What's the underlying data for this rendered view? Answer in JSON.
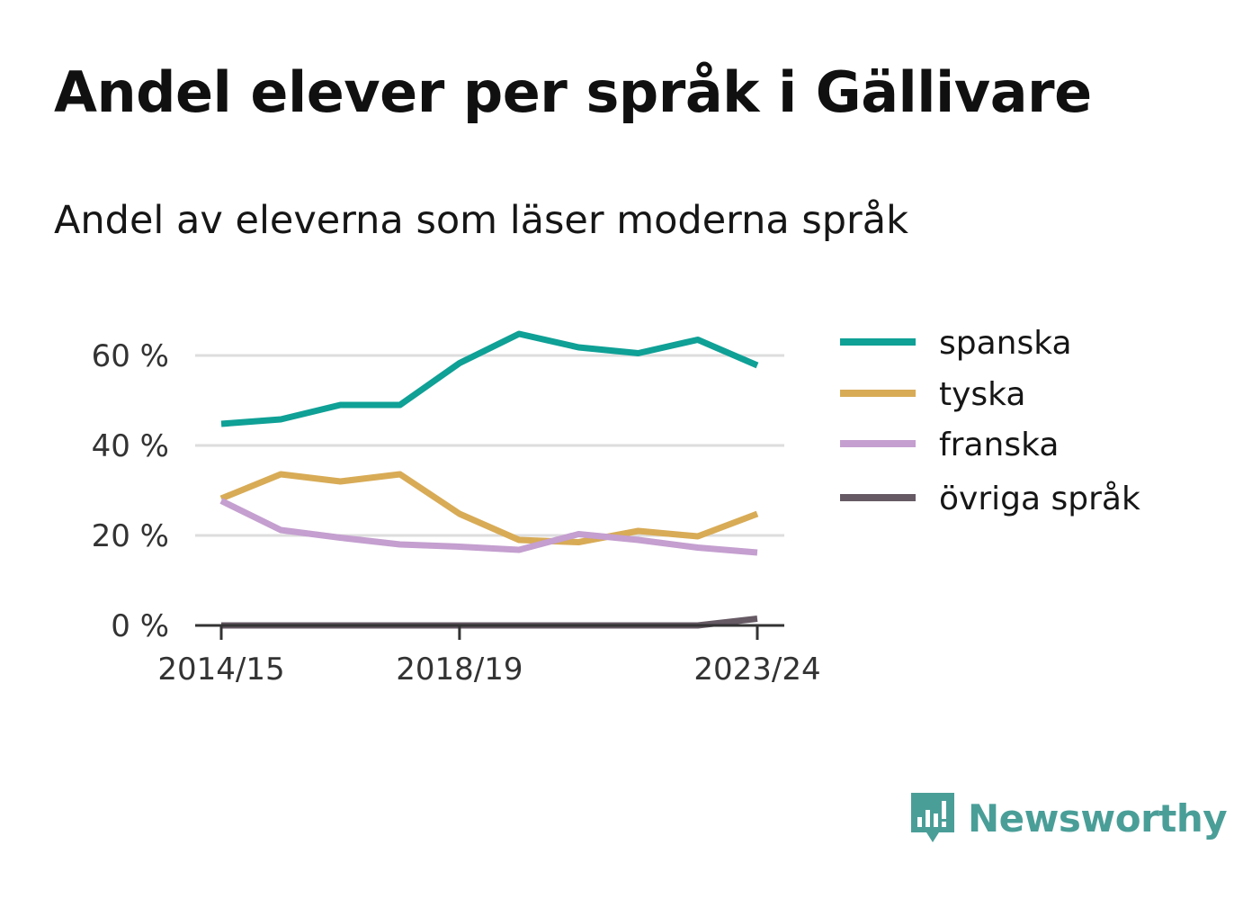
{
  "title": "Andel elever per språk i Gällivare",
  "subtitle": "Andel av eleverna som läser moderna språk",
  "brand": "Newsworthy",
  "chart_data": {
    "type": "line",
    "x": [
      "2014/15",
      "2015/16",
      "2016/17",
      "2017/18",
      "2018/19",
      "2019/20",
      "2020/21",
      "2021/22",
      "2022/23",
      "2023/24"
    ],
    "x_tick_labels": [
      "2014/15",
      "2018/19",
      "2023/24"
    ],
    "y_tick_labels": [
      "0 %",
      "20 %",
      "40 %",
      "60 %"
    ],
    "y_ticks": [
      0,
      20,
      40,
      60
    ],
    "ylim": [
      0,
      70
    ],
    "grid": true,
    "legend_position": "right",
    "series": [
      {
        "name": "spanska",
        "color": "#0fa096",
        "values": [
          44.8,
          45.8,
          49.0,
          49.0,
          58.3,
          64.8,
          61.8,
          60.5,
          63.5,
          57.8
        ]
      },
      {
        "name": "tyska",
        "color": "#d8ab56",
        "values": [
          28.2,
          33.6,
          32.0,
          33.6,
          24.8,
          19.0,
          18.5,
          21.0,
          19.8,
          24.8
        ]
      },
      {
        "name": "franska",
        "color": "#c49fcf",
        "values": [
          27.7,
          21.2,
          19.5,
          18.0,
          17.5,
          16.8,
          20.3,
          19.0,
          17.3,
          16.2
        ]
      },
      {
        "name": "övriga språk",
        "color": "#665a64",
        "values": [
          0,
          0,
          0,
          0,
          0,
          0,
          0,
          0,
          0,
          1.5
        ]
      }
    ]
  }
}
